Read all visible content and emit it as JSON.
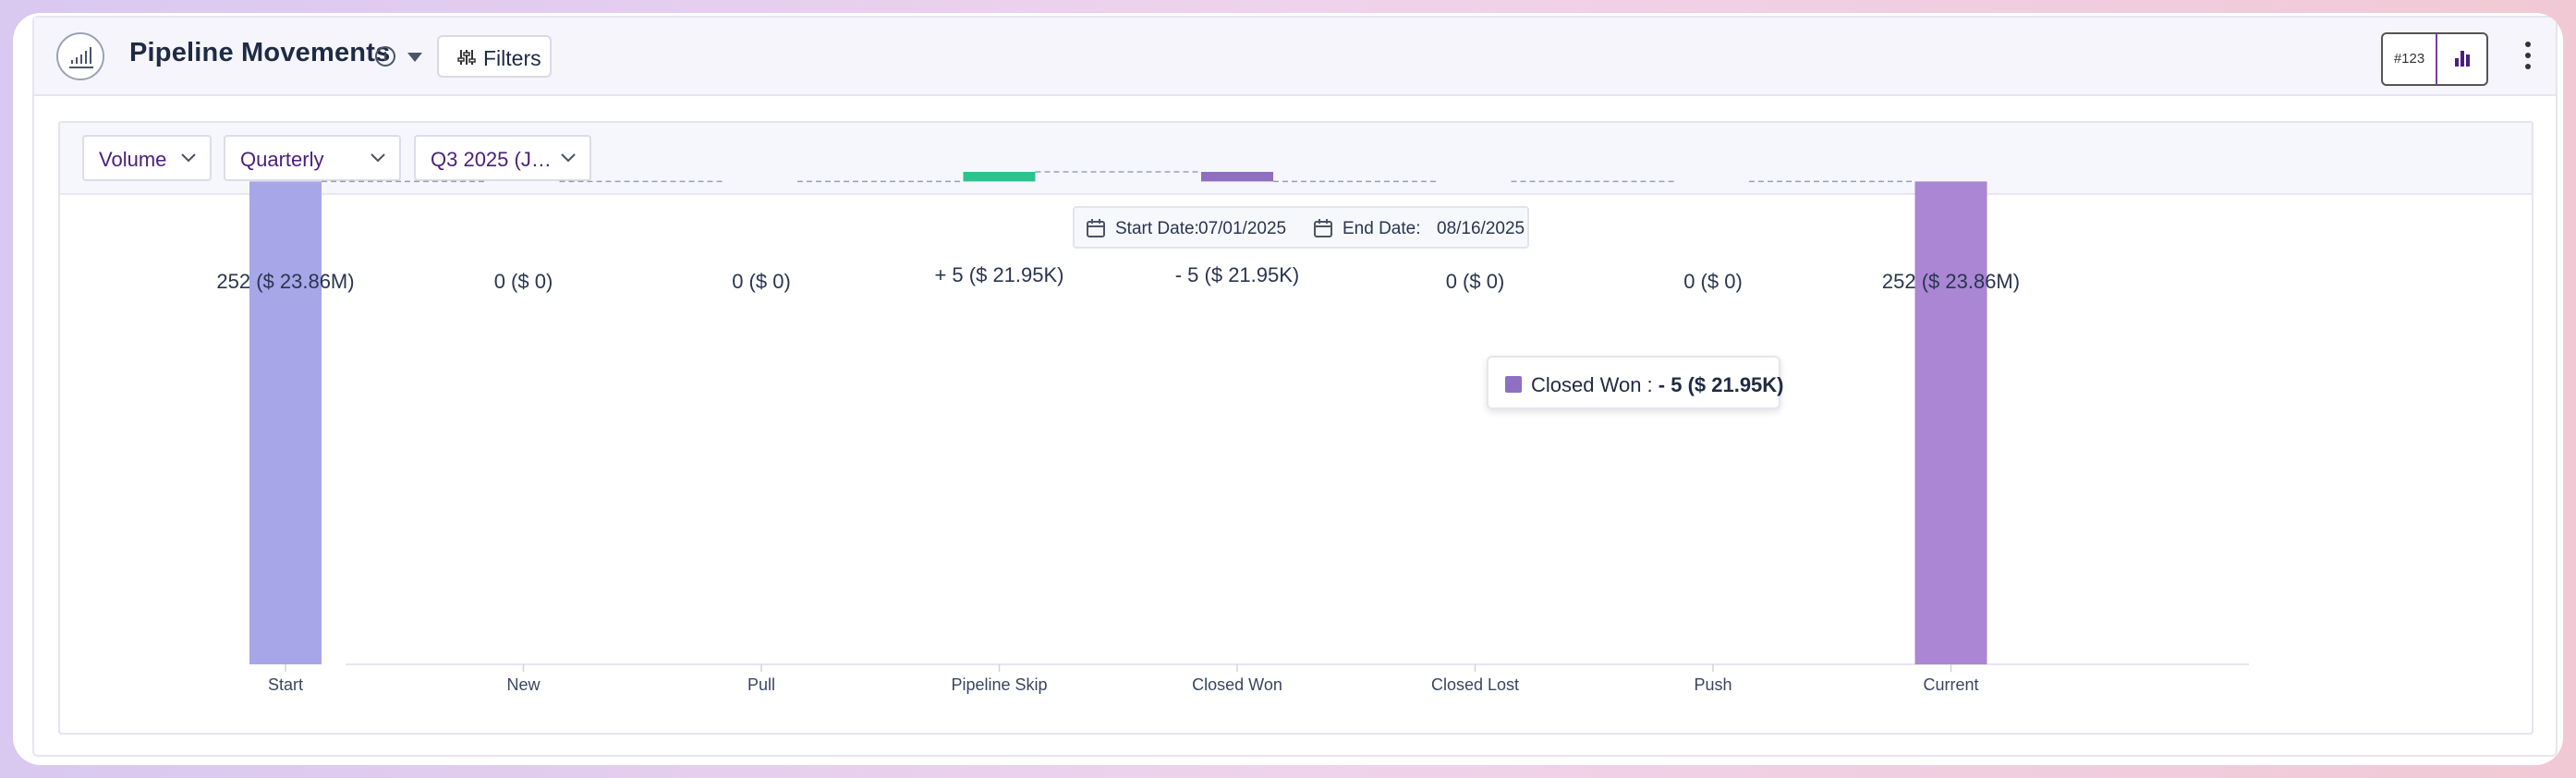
{
  "header": {
    "title": "Pipeline Movements",
    "info_icon": "info-icon",
    "filters_label": "Filters",
    "toggle_number_label": "#123"
  },
  "controls": {
    "metric": "Volume",
    "period": "Quarterly",
    "quarter": "Q3 2025 (J…"
  },
  "dates": {
    "start_label": "Start Date:",
    "start_value": "07/01/2025",
    "end_label": "End Date:",
    "end_value": "08/16/2025"
  },
  "tooltip": {
    "label": "Closed Won : ",
    "value": "- 5 ($ 21.95K)",
    "color": "#8f6fc1"
  },
  "chart_data": {
    "type": "bar",
    "subtype": "waterfall",
    "categories": [
      "Start",
      "New",
      "Pull",
      "Pipeline Skip",
      "Closed Won",
      "Closed Lost",
      "Push",
      "Current"
    ],
    "values": [
      252,
      0,
      0,
      5,
      -5,
      0,
      0,
      252
    ],
    "amounts": [
      "$ 23.86M",
      "$ 0",
      "$ 0",
      "$ 21.95K",
      "$ 21.95K",
      "$ 0",
      "$ 0",
      "$ 23.86M"
    ],
    "labels": [
      "252 ($ 23.86M)",
      "0 ($ 0)",
      "0 ($ 0)",
      "+ 5 ($ 21.95K)",
      "- 5 ($ 21.95K)",
      "0 ($ 0)",
      "0 ($ 0)",
      "252 ($ 23.86M)"
    ],
    "colors": [
      "#a6a6e8",
      "#a6a6e8",
      "#a6a6e8",
      "#2bc48f",
      "#8f6fc1",
      "#8f6fc1",
      "#8f6fc1",
      "#aa86d4"
    ],
    "ylim": [
      0,
      257
    ],
    "grid": false
  }
}
